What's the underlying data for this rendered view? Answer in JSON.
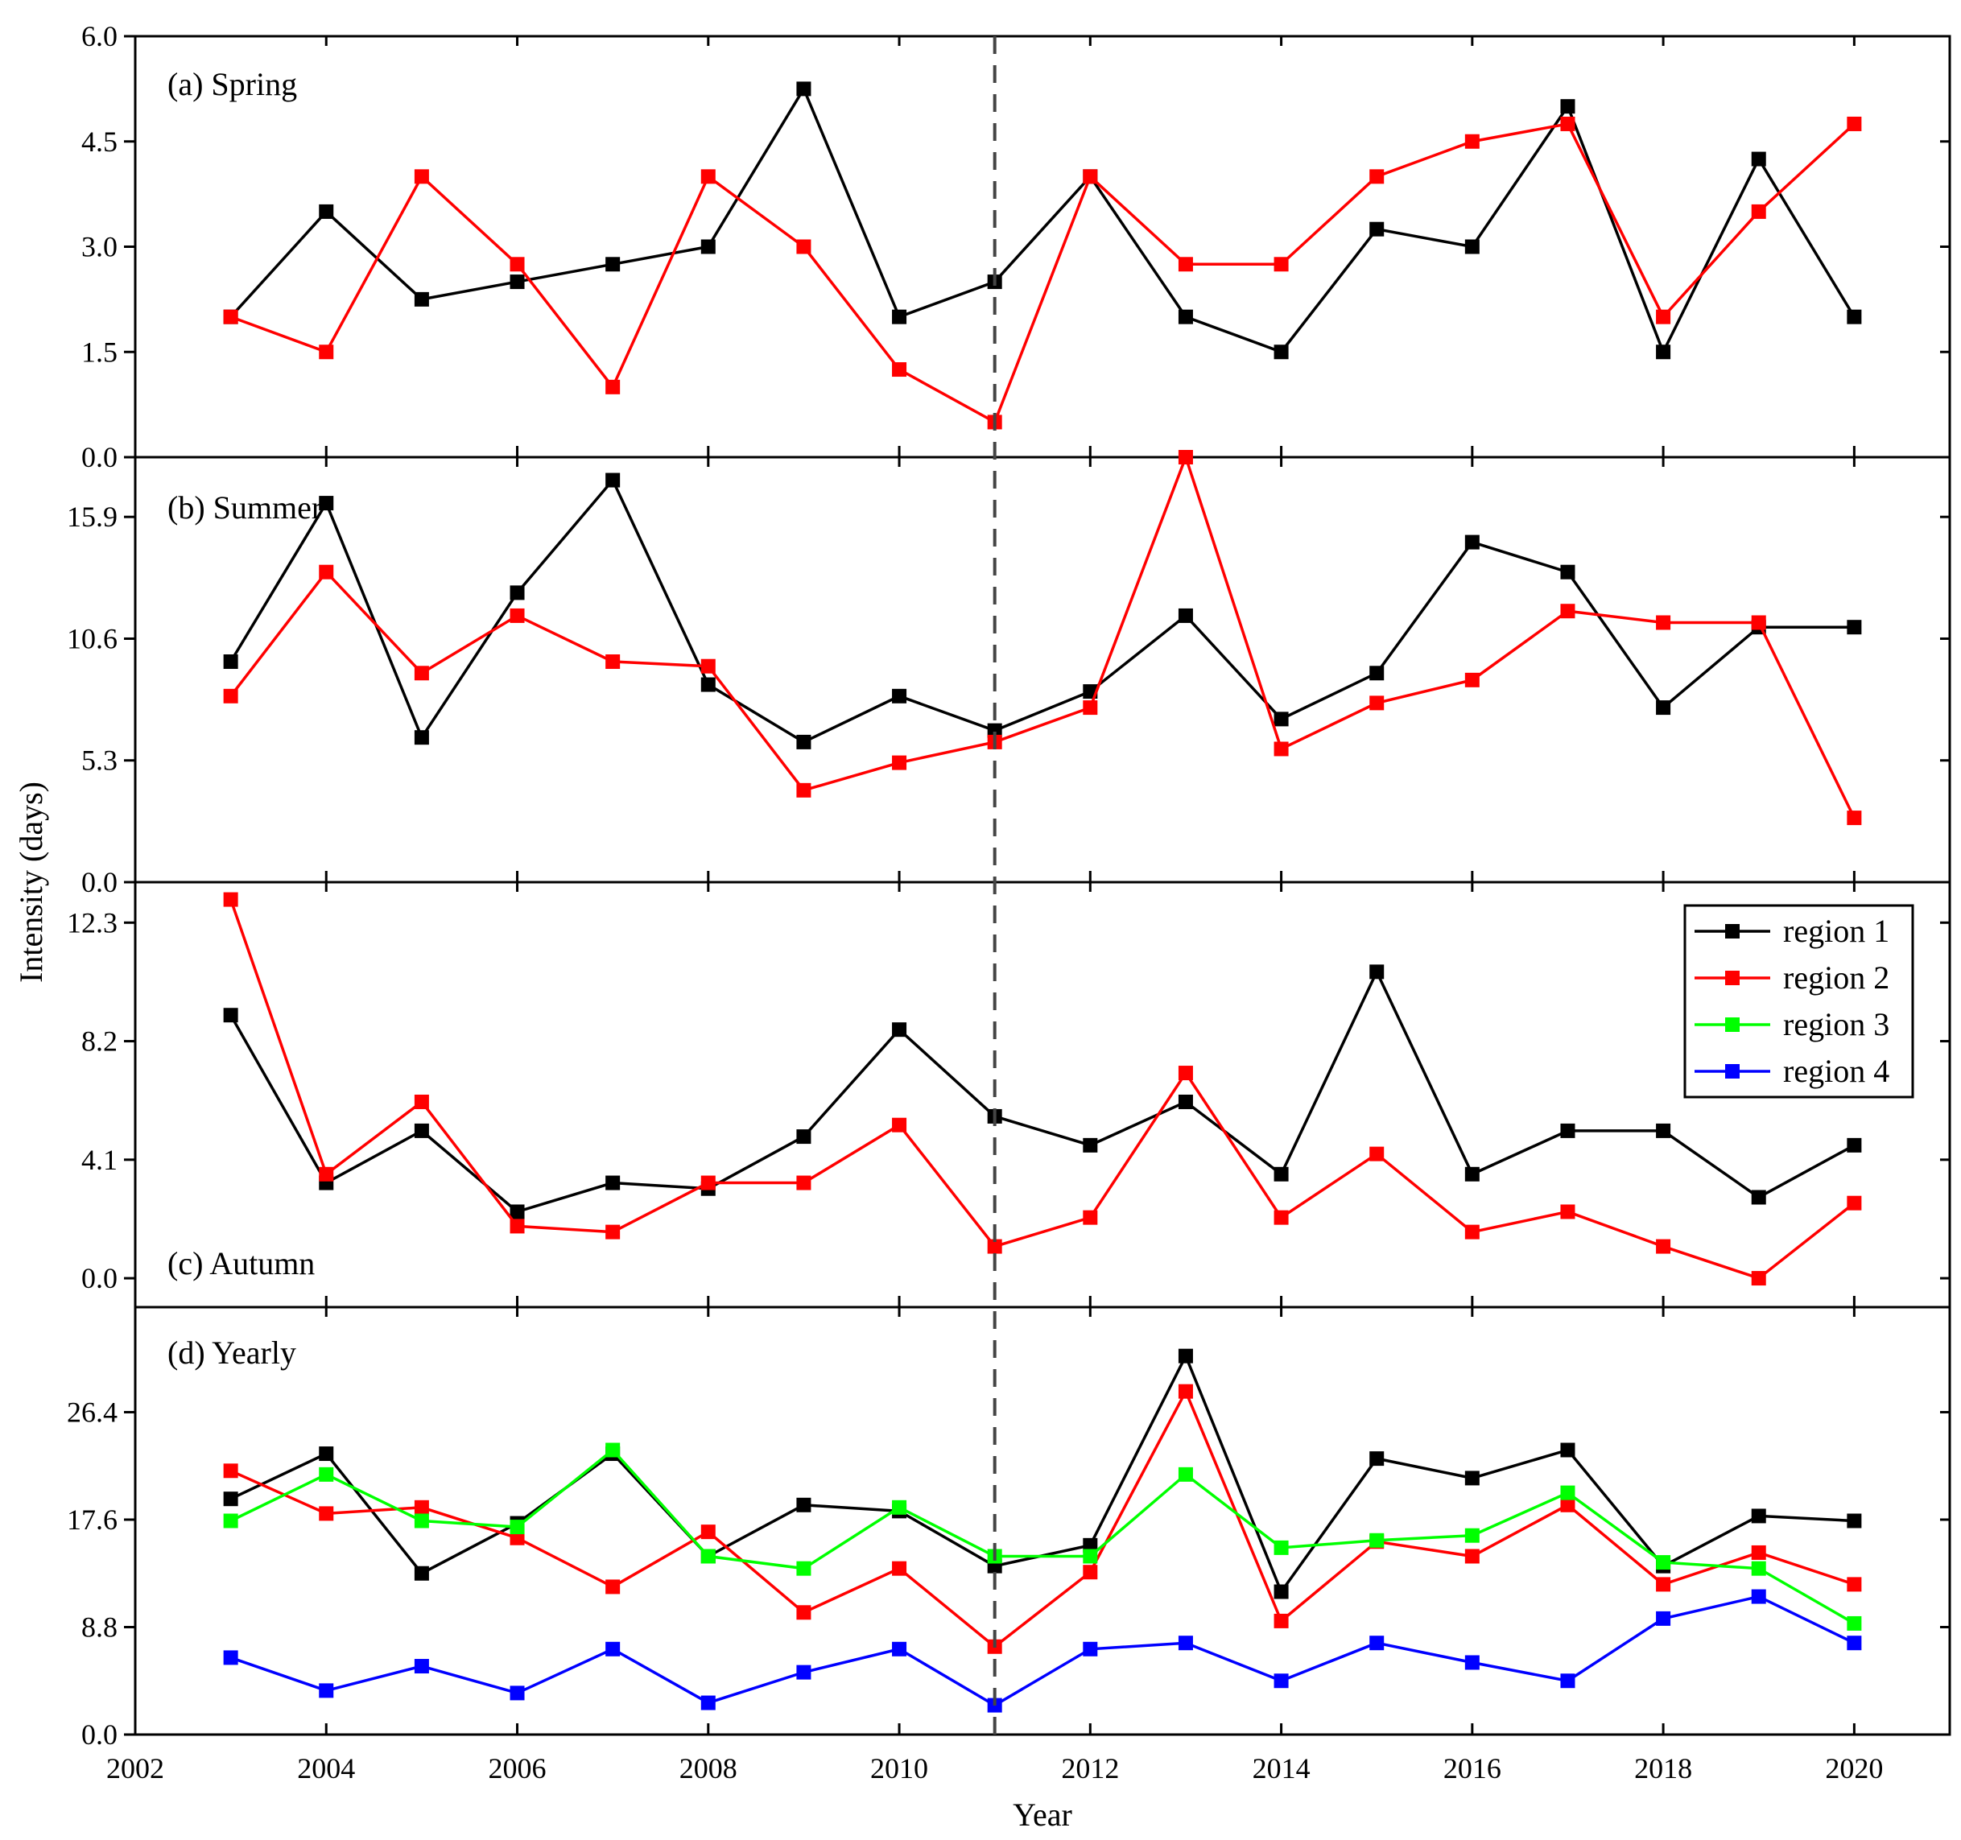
{
  "chart_data": {
    "type": "line",
    "x": [
      2003,
      2004,
      2005,
      2006,
      2007,
      2008,
      2009,
      2010,
      2011,
      2012,
      2013,
      2014,
      2015,
      2016,
      2017,
      2018,
      2019,
      2020
    ],
    "xlim": [
      2002,
      2021
    ],
    "xticks": [
      "2002",
      "2004",
      "2006",
      "2008",
      "2010",
      "2012",
      "2014",
      "2016",
      "2018",
      "2020"
    ],
    "xlabel": "Year",
    "ylabel": "Intensity (days)",
    "reference_line_x": 2011,
    "colors": {
      "region 1": "#000000",
      "region 2": "#ff0000",
      "region 3": "#00ff00",
      "region 4": "#0000ff",
      "reference": "#444444"
    },
    "legend": [
      "region 1",
      "region 2",
      "region 3",
      "region 4"
    ],
    "panels": [
      {
        "title": "(a) Spring",
        "ylim": [
          0,
          6.0
        ],
        "yticks": [
          "0.0",
          "1.5",
          "3.0",
          "4.5",
          "6.0"
        ],
        "series": [
          {
            "name": "region 1",
            "values": [
              2.0,
              3.5,
              2.25,
              2.5,
              2.75,
              3.0,
              5.25,
              2.0,
              2.5,
              4.0,
              2.0,
              1.5,
              3.25,
              3.0,
              5.0,
              1.5,
              4.25,
              2.0
            ]
          },
          {
            "name": "region 2",
            "values": [
              2.0,
              1.5,
              4.0,
              2.75,
              1.0,
              4.0,
              3.0,
              1.25,
              0.5,
              4.0,
              2.75,
              2.75,
              4.0,
              4.5,
              4.75,
              2.0,
              3.5,
              4.75
            ]
          }
        ]
      },
      {
        "title": "(b) Summer",
        "ylim": [
          0,
          18.5
        ],
        "yticks": [
          "0.0",
          "5.3",
          "10.6",
          "15.9"
        ],
        "series": [
          {
            "name": "region 1",
            "values": [
              9.6,
              16.5,
              6.3,
              12.6,
              17.5,
              8.6,
              6.1,
              8.1,
              6.6,
              8.3,
              11.6,
              7.1,
              9.1,
              14.8,
              13.5,
              7.6,
              11.1,
              11.1
            ]
          },
          {
            "name": "region 2",
            "values": [
              8.1,
              13.5,
              9.1,
              11.6,
              9.6,
              9.4,
              4.0,
              5.2,
              6.1,
              7.6,
              18.5,
              5.8,
              7.8,
              8.8,
              11.8,
              11.3,
              11.3,
              2.8
            ]
          }
        ]
      },
      {
        "title": "(c) Autumn",
        "ylim": [
          -1.0,
          13.7
        ],
        "yticks": [
          "0.0",
          "4.1",
          "8.2",
          "12.3"
        ],
        "series": [
          {
            "name": "region 1",
            "values": [
              9.1,
              3.3,
              5.1,
              2.3,
              3.3,
              3.1,
              4.9,
              8.6,
              5.6,
              4.6,
              6.1,
              3.6,
              10.6,
              3.6,
              5.1,
              5.1,
              2.8,
              4.6
            ]
          },
          {
            "name": "region 2",
            "values": [
              13.1,
              3.6,
              6.1,
              1.8,
              1.6,
              3.3,
              3.3,
              5.3,
              1.1,
              2.1,
              7.1,
              2.1,
              4.3,
              1.6,
              2.3,
              1.1,
              0.0,
              2.6
            ]
          }
        ]
      },
      {
        "title": "(d) Yearly",
        "ylim": [
          0,
          35.0
        ],
        "yticks": [
          "0.0",
          "8.8",
          "17.6",
          "26.4"
        ],
        "series": [
          {
            "name": "region 1",
            "values": [
              19.3,
              23.0,
              13.2,
              17.3,
              23.0,
              14.6,
              18.8,
              18.3,
              13.8,
              15.5,
              31.0,
              11.7,
              22.6,
              21.0,
              23.3,
              13.8,
              17.9,
              17.5
            ]
          },
          {
            "name": "region 2",
            "values": [
              21.6,
              18.1,
              18.6,
              16.1,
              12.1,
              16.6,
              10.0,
              13.6,
              7.2,
              13.3,
              28.1,
              9.3,
              15.8,
              14.6,
              18.8,
              12.3,
              14.9,
              12.3
            ]
          },
          {
            "name": "region 3",
            "values": [
              17.5,
              21.3,
              17.5,
              17.0,
              23.3,
              14.6,
              13.6,
              18.6,
              14.6,
              14.6,
              21.3,
              15.3,
              15.9,
              16.3,
              19.8,
              14.1,
              13.6,
              9.1
            ]
          },
          {
            "name": "region 4",
            "values": [
              6.3,
              3.6,
              5.6,
              3.4,
              7.0,
              2.6,
              5.1,
              7.0,
              2.4,
              7.0,
              7.5,
              4.4,
              7.5,
              5.9,
              4.4,
              9.5,
              11.3,
              7.5
            ]
          }
        ]
      }
    ]
  }
}
